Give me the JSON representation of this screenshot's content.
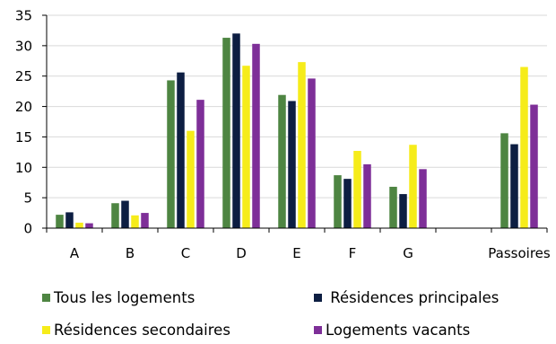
{
  "chart_data": {
    "type": "bar",
    "categories": [
      "A",
      "B",
      "C",
      "D",
      "E",
      "F",
      "G",
      "",
      "Passoires"
    ],
    "series": [
      {
        "name": "Tous les logements",
        "color": "#4e8542",
        "values": [
          2.2,
          4.1,
          24.3,
          31.3,
          21.9,
          8.7,
          6.8,
          null,
          15.6
        ]
      },
      {
        "name": " Résidences principales",
        "color": "#0d1e42",
        "values": [
          2.6,
          4.5,
          25.6,
          32.0,
          20.9,
          8.1,
          5.6,
          null,
          13.8
        ]
      },
      {
        "name": "Résidences secondaires",
        "color": "#f6ec1a",
        "values": [
          0.9,
          2.1,
          16.0,
          26.7,
          27.3,
          12.7,
          13.7,
          null,
          26.5
        ]
      },
      {
        "name": "Logements vacants",
        "color": "#7e2f98",
        "values": [
          0.8,
          2.5,
          21.1,
          30.3,
          24.6,
          10.5,
          9.7,
          null,
          20.3
        ]
      }
    ],
    "yticks": [
      "0",
      "5",
      "10",
      "15",
      "20",
      "25",
      "30",
      "35"
    ],
    "ylim": [
      0,
      35
    ],
    "grid": "horizontal",
    "legend_position": "bottom"
  }
}
